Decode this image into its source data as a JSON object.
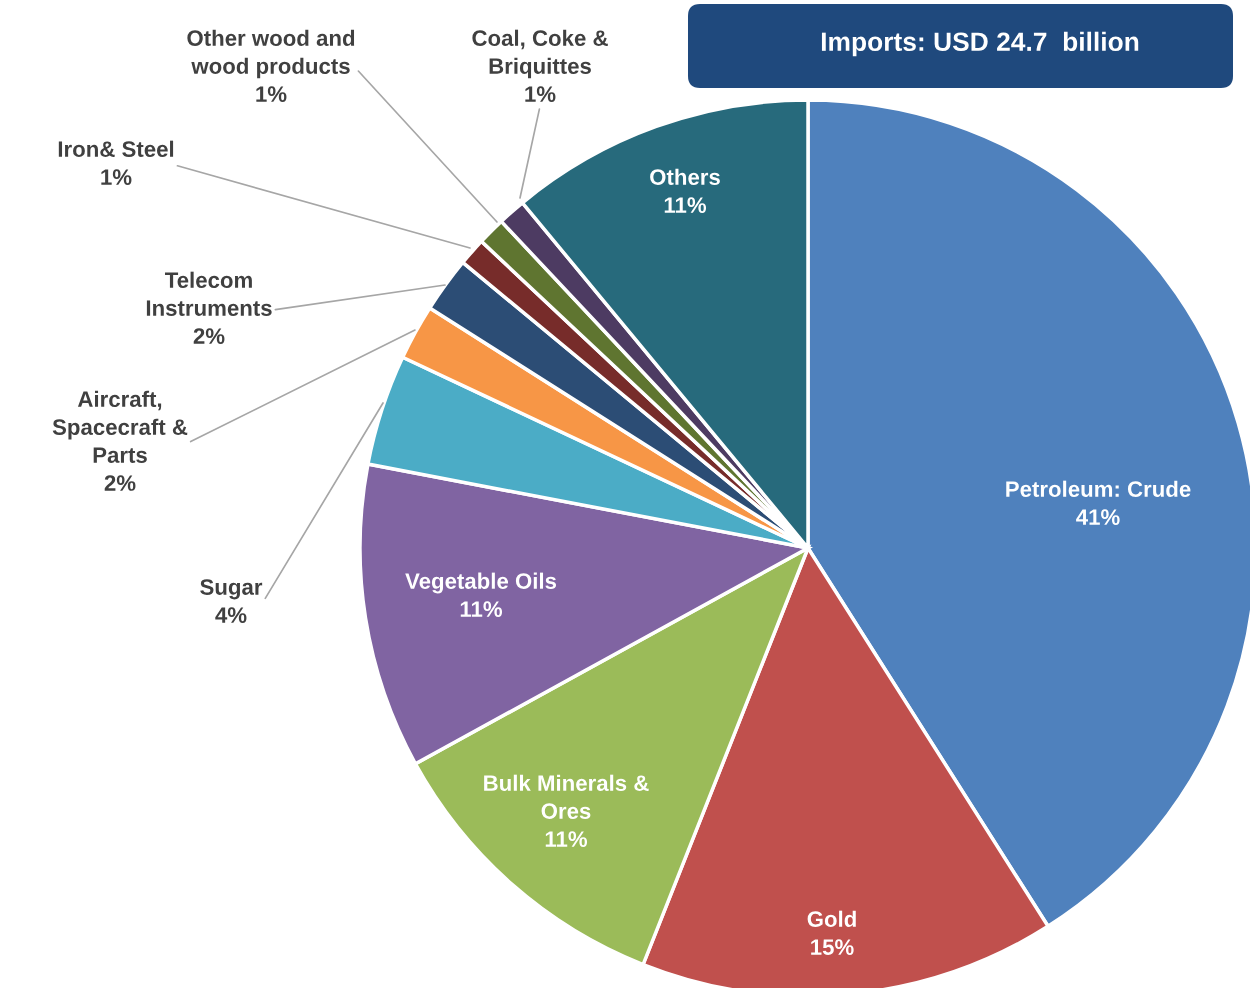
{
  "chart_data": {
    "type": "pie",
    "title": "Imports: USD 24.7  billion",
    "categories": [
      "Petroleum: Crude",
      "Gold",
      "Bulk Minerals & Ores",
      "Vegetable Oils",
      "Sugar",
      "Aircraft, Spacecraft & Parts",
      "Telecom Instruments",
      "Iron& Steel",
      "Other wood and wood products",
      "Coal, Coke & Briquittes",
      "Others"
    ],
    "values": [
      41,
      15,
      11,
      11,
      4,
      2,
      2,
      1,
      1,
      1,
      11
    ],
    "colors": [
      "#4f81bd",
      "#c0504d",
      "#9bbb59",
      "#8064a2",
      "#4bacc6",
      "#f79646",
      "#2c4d75",
      "#772c2a",
      "#5f7530",
      "#4d3b62",
      "#276a7c"
    ],
    "value_labels": [
      "41%",
      "15%",
      "11%",
      "11%",
      "4%",
      "2%",
      "2%",
      "1%",
      "1%",
      "1%",
      "11%"
    ],
    "legend": false
  }
}
